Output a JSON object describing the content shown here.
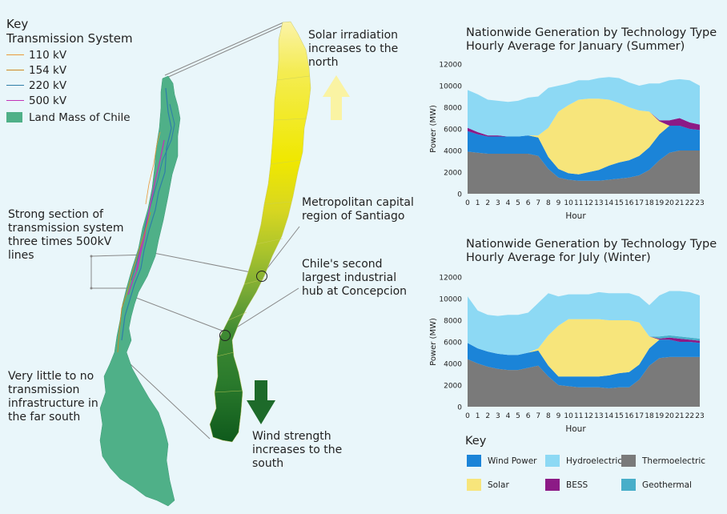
{
  "left_key": {
    "title": "Key",
    "subtitle": "Transmission System",
    "items": [
      {
        "label": "110 kV",
        "color": "#e99a3a",
        "kind": "line"
      },
      {
        "label": "154 kV",
        "color": "#cd8a22",
        "kind": "line"
      },
      {
        "label": "220 kV",
        "color": "#2f7ea8",
        "kind": "line"
      },
      {
        "label": "500 kV",
        "color": "#c233b8",
        "kind": "line"
      },
      {
        "label": "Land Mass of Chile",
        "color": "#4fb088",
        "kind": "box"
      }
    ]
  },
  "annotations": {
    "strong_section": [
      "Strong section of",
      "transmission system",
      "three times 500kV",
      "lines"
    ],
    "far_south": [
      "Very little to no",
      "transmission",
      "infrastructure in",
      "the far south"
    ],
    "solar": [
      "Solar irradiation",
      "increases to the",
      "north"
    ],
    "santiago": [
      "Metropolitan capital",
      "region of Santiago"
    ],
    "concepcion": [
      "Chile's second",
      "largest industrial",
      "hub at Concepcion"
    ],
    "wind": [
      "Wind strength",
      "increases to the",
      "south"
    ]
  },
  "colors": {
    "wind": "#1b84d8",
    "hydro": "#8dd9f4",
    "thermo": "#7a7a7a",
    "solar": "#f7e57b",
    "bess": "#8c1a86",
    "geo": "#48aec9",
    "map_green": "#4fb088",
    "arrow_solar": "#faf3a3",
    "arrow_wind": "#1d6a2a"
  },
  "chart_data": [
    {
      "type": "area",
      "title": "Nationwide Generation by Technology Type",
      "subtitle": "Hourly Average for January (Summer)",
      "xlabel": "Hour",
      "ylabel": "Power (MW)",
      "ylim": [
        0,
        12000
      ],
      "yticks": [
        "0",
        "2000",
        "4000",
        "6000",
        "8000",
        "10000",
        "12000"
      ],
      "x": [
        0,
        1,
        2,
        3,
        4,
        5,
        6,
        7,
        8,
        9,
        10,
        11,
        12,
        13,
        14,
        15,
        16,
        17,
        18,
        19,
        20,
        21,
        22,
        23
      ],
      "series": [
        {
          "name": "Thermoelectric",
          "values": [
            3900,
            3800,
            3700,
            3700,
            3700,
            3700,
            3700,
            3500,
            2300,
            1500,
            1300,
            1200,
            1200,
            1200,
            1300,
            1400,
            1500,
            1700,
            2200,
            3100,
            3800,
            4000,
            4000,
            4000
          ]
        },
        {
          "name": "Wind Power",
          "values": [
            1900,
            1700,
            1600,
            1600,
            1600,
            1600,
            1700,
            1700,
            1100,
            800,
            600,
            600,
            800,
            1000,
            1300,
            1500,
            1600,
            1800,
            2100,
            2400,
            2500,
            2300,
            2000,
            1900
          ]
        },
        {
          "name": "Solar",
          "values": [
            0,
            0,
            0,
            0,
            0,
            0,
            0,
            200,
            2700,
            5300,
            6300,
            6900,
            6800,
            6600,
            6100,
            5500,
            4900,
            4200,
            3300,
            1200,
            0,
            0,
            0,
            0
          ]
        },
        {
          "name": "BESS",
          "values": [
            300,
            200,
            100,
            100,
            0,
            0,
            0,
            0,
            0,
            0,
            0,
            0,
            0,
            0,
            0,
            0,
            0,
            0,
            0,
            100,
            500,
            700,
            600,
            500
          ]
        },
        {
          "name": "Geothermal",
          "values": [
            0,
            0,
            0,
            0,
            0,
            0,
            0,
            0,
            0,
            0,
            0,
            0,
            0,
            0,
            0,
            0,
            0,
            0,
            0,
            0,
            0,
            0,
            0,
            0
          ]
        },
        {
          "name": "Hydroelectric",
          "values": [
            3500,
            3500,
            3300,
            3200,
            3200,
            3300,
            3500,
            3600,
            3700,
            2400,
            2000,
            1800,
            1700,
            1900,
            2100,
            2300,
            2300,
            2300,
            2600,
            3400,
            3700,
            3600,
            3900,
            3600
          ]
        }
      ]
    },
    {
      "type": "area",
      "title": "Nationwide Generation by Technology Type",
      "subtitle": "Hourly Average for July (Winter)",
      "xlabel": "Hour",
      "ylabel": "Power (MW)",
      "ylim": [
        0,
        12000
      ],
      "yticks": [
        "0",
        "2000",
        "4000",
        "6000",
        "8000",
        "10000",
        "12000"
      ],
      "x": [
        0,
        1,
        2,
        3,
        4,
        5,
        6,
        7,
        8,
        9,
        10,
        11,
        12,
        13,
        14,
        15,
        16,
        17,
        18,
        19,
        20,
        21,
        22,
        23
      ],
      "series": [
        {
          "name": "Thermoelectric",
          "values": [
            4400,
            4000,
            3700,
            3500,
            3400,
            3400,
            3600,
            3800,
            2800,
            2000,
            1900,
            1800,
            1800,
            1800,
            1700,
            1800,
            1800,
            2500,
            3800,
            4500,
            4600,
            4600,
            4600,
            4600
          ]
        },
        {
          "name": "Wind Power",
          "values": [
            1500,
            1400,
            1400,
            1400,
            1400,
            1400,
            1400,
            1400,
            1000,
            800,
            900,
            1000,
            1000,
            1000,
            1200,
            1300,
            1400,
            1400,
            1600,
            1700,
            1600,
            1400,
            1400,
            1300
          ]
        },
        {
          "name": "Solar",
          "values": [
            0,
            0,
            0,
            0,
            0,
            0,
            0,
            200,
            2800,
            4700,
            5300,
            5300,
            5300,
            5300,
            5100,
            4900,
            4800,
            3900,
            1100,
            0,
            0,
            0,
            0,
            0
          ]
        },
        {
          "name": "BESS",
          "values": [
            0,
            0,
            0,
            0,
            0,
            0,
            0,
            0,
            0,
            0,
            0,
            0,
            0,
            0,
            0,
            0,
            0,
            0,
            0,
            100,
            200,
            300,
            200,
            200
          ]
        },
        {
          "name": "Geothermal",
          "values": [
            0,
            0,
            0,
            0,
            0,
            0,
            0,
            0,
            0,
            0,
            0,
            0,
            0,
            0,
            0,
            0,
            0,
            0,
            0,
            200,
            200,
            200,
            200,
            200
          ]
        },
        {
          "name": "Hydroelectric",
          "values": [
            4300,
            3500,
            3400,
            3500,
            3700,
            3700,
            3700,
            4200,
            3900,
            2700,
            2300,
            2300,
            2300,
            2500,
            2500,
            2500,
            2500,
            2400,
            2900,
            3800,
            4100,
            4200,
            4200,
            4000
          ]
        }
      ]
    }
  ],
  "bottom_key": {
    "title": "Key",
    "items": [
      {
        "label": "Wind Power",
        "color": "#1b84d8"
      },
      {
        "label": "Hydroelectric",
        "color": "#8dd9f4"
      },
      {
        "label": "Thermoelectric",
        "color": "#7a7a7a"
      },
      {
        "label": "Solar",
        "color": "#f7e57b"
      },
      {
        "label": "BESS",
        "color": "#8c1a86"
      },
      {
        "label": "Geothermal",
        "color": "#48aec9"
      }
    ]
  }
}
